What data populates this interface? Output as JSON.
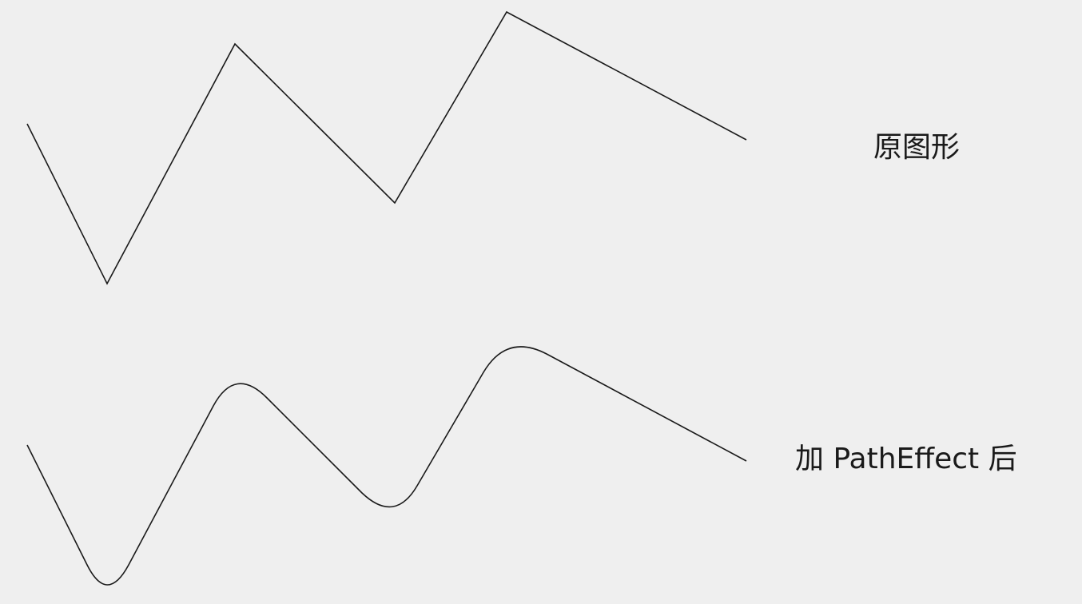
{
  "labels": {
    "original": "原图形",
    "with_effect": "加 PathEffect 后"
  },
  "colors": {
    "background": "#efefef",
    "stroke": "#1a1a1a",
    "text": "#1a1a1a"
  }
}
